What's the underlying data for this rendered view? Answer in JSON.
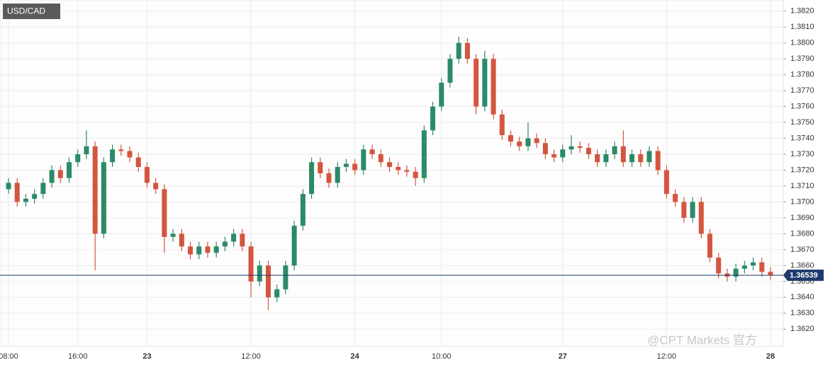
{
  "chart_data": {
    "type": "candlestick",
    "title": "USD/CAD",
    "watermark": "@CPT Markets 官方",
    "categories": [
      "08:00",
      null,
      null,
      null,
      null,
      null,
      null,
      null,
      "16:00",
      null,
      null,
      null,
      null,
      null,
      null,
      null,
      "23",
      null,
      null,
      null,
      null,
      null,
      null,
      null,
      null,
      null,
      null,
      null,
      "12:00",
      null,
      null,
      null,
      null,
      null,
      null,
      null,
      null,
      null,
      null,
      null,
      "24",
      null,
      null,
      null,
      null,
      null,
      null,
      null,
      null,
      null,
      "10:00",
      null,
      null,
      null,
      null,
      null,
      null,
      null,
      null,
      null,
      null,
      null,
      null,
      null,
      "27",
      null,
      null,
      null,
      null,
      null,
      null,
      null,
      null,
      null,
      null,
      null,
      "12:00",
      null,
      null,
      null,
      null,
      null,
      null,
      null,
      null,
      null,
      null,
      null,
      "28"
    ],
    "open": [
      1.3708,
      1.3712,
      1.37,
      1.3702,
      1.3705,
      1.3712,
      1.372,
      1.3715,
      1.3725,
      1.373,
      1.3735,
      1.368,
      1.3725,
      1.3733,
      1.3732,
      1.3728,
      1.3722,
      1.3712,
      1.3708,
      1.3678,
      1.368,
      1.3672,
      1.3667,
      1.3672,
      1.3668,
      1.3672,
      1.3675,
      1.368,
      1.3672,
      1.365,
      1.366,
      1.364,
      1.3645,
      1.366,
      1.3685,
      1.3705,
      1.3725,
      1.3718,
      1.3712,
      1.3722,
      1.3724,
      1.372,
      1.3733,
      1.373,
      1.3725,
      1.3722,
      1.372,
      1.3719,
      1.3715,
      1.3745,
      1.376,
      1.3775,
      1.379,
      1.38,
      1.379,
      1.376,
      1.379,
      1.3755,
      1.3742,
      1.3738,
      1.3735,
      1.374,
      1.3737,
      1.373,
      1.3728,
      1.3733,
      1.3735,
      1.3734,
      1.373,
      1.3725,
      1.373,
      1.3735,
      1.3725,
      1.373,
      1.3725,
      1.3732,
      1.372,
      1.3705,
      1.37,
      1.369,
      1.37,
      1.368,
      1.3665,
      1.3655,
      1.3653,
      1.3658,
      1.366,
      1.3662,
      1.3656
    ],
    "high": [
      1.3715,
      1.3715,
      1.3705,
      1.3708,
      1.3715,
      1.3723,
      1.3723,
      1.3728,
      1.3733,
      1.3745,
      1.3738,
      1.3728,
      1.3736,
      1.3736,
      1.3735,
      1.3731,
      1.3725,
      1.3715,
      1.3711,
      1.3683,
      1.3683,
      1.3675,
      1.3675,
      1.3675,
      1.3675,
      1.3678,
      1.3683,
      1.3683,
      1.3675,
      1.3663,
      1.3663,
      1.3648,
      1.3663,
      1.3688,
      1.3708,
      1.3728,
      1.3728,
      1.3721,
      1.3725,
      1.3727,
      1.3727,
      1.3736,
      1.3736,
      1.3733,
      1.3728,
      1.3725,
      1.3723,
      1.3722,
      1.3748,
      1.3763,
      1.3778,
      1.3793,
      1.3804,
      1.3803,
      1.3793,
      1.3795,
      1.3793,
      1.3758,
      1.3745,
      1.3741,
      1.375,
      1.3743,
      1.374,
      1.3733,
      1.3736,
      1.3742,
      1.3738,
      1.3737,
      1.3733,
      1.3733,
      1.3738,
      1.3745,
      1.3733,
      1.3733,
      1.3735,
      1.3735,
      1.3723,
      1.3708,
      1.3703,
      1.3703,
      1.3703,
      1.3683,
      1.3668,
      1.3658,
      1.3661,
      1.3663,
      1.3665,
      1.3665,
      1.3659
    ],
    "low": [
      1.3705,
      1.3697,
      1.3697,
      1.3699,
      1.3702,
      1.3709,
      1.3712,
      1.3712,
      1.3722,
      1.3727,
      1.3657,
      1.3677,
      1.3722,
      1.3729,
      1.3725,
      1.3719,
      1.3709,
      1.3705,
      1.3668,
      1.3675,
      1.3669,
      1.3664,
      1.3664,
      1.3665,
      1.3665,
      1.3669,
      1.3672,
      1.3669,
      1.364,
      1.3647,
      1.3632,
      1.3637,
      1.3642,
      1.3657,
      1.3682,
      1.3702,
      1.3715,
      1.3709,
      1.3709,
      1.3719,
      1.3717,
      1.3717,
      1.3727,
      1.3722,
      1.3719,
      1.3717,
      1.3716,
      1.371,
      1.3712,
      1.3742,
      1.3757,
      1.3772,
      1.3787,
      1.3787,
      1.3755,
      1.3757,
      1.3752,
      1.3739,
      1.3735,
      1.3732,
      1.3732,
      1.3734,
      1.3727,
      1.3725,
      1.3725,
      1.373,
      1.3731,
      1.3727,
      1.3722,
      1.3722,
      1.3727,
      1.3722,
      1.3722,
      1.3722,
      1.3722,
      1.3717,
      1.3702,
      1.3697,
      1.3687,
      1.3687,
      1.3677,
      1.3662,
      1.3652,
      1.365,
      1.365,
      1.3655,
      1.3657,
      1.3653,
      1.3651
    ],
    "close": [
      1.3712,
      1.37,
      1.3702,
      1.3705,
      1.3712,
      1.372,
      1.3715,
      1.3725,
      1.373,
      1.3735,
      1.368,
      1.3725,
      1.3733,
      1.3732,
      1.3728,
      1.3722,
      1.3712,
      1.3708,
      1.3678,
      1.368,
      1.3672,
      1.3667,
      1.3672,
      1.3668,
      1.3672,
      1.3675,
      1.368,
      1.3672,
      1.365,
      1.366,
      1.364,
      1.3645,
      1.366,
      1.3685,
      1.3705,
      1.3725,
      1.3718,
      1.3712,
      1.3722,
      1.3724,
      1.372,
      1.3733,
      1.373,
      1.3725,
      1.3722,
      1.372,
      1.3719,
      1.3715,
      1.3745,
      1.376,
      1.3775,
      1.379,
      1.38,
      1.379,
      1.376,
      1.379,
      1.3755,
      1.3742,
      1.3738,
      1.3735,
      1.374,
      1.3737,
      1.373,
      1.3728,
      1.3733,
      1.3735,
      1.3734,
      1.373,
      1.3725,
      1.373,
      1.3735,
      1.3725,
      1.373,
      1.3725,
      1.3732,
      1.372,
      1.3705,
      1.37,
      1.369,
      1.37,
      1.368,
      1.3665,
      1.3655,
      1.3653,
      1.3658,
      1.366,
      1.3662,
      1.3656,
      1.3654
    ],
    "up_color": "#2b8a67",
    "down_color": "#d4553f",
    "last_price": 1.36539,
    "last_price_color": "#1f3b6d",
    "ylim": [
      1.3609,
      1.3827
    ],
    "yticks": [
      {
        "value": 1.362,
        "label": "1.3620"
      },
      {
        "value": 1.363,
        "label": "1.3630"
      },
      {
        "value": 1.364,
        "label": "1.3640"
      },
      {
        "value": 1.365,
        "label": "1.3650"
      },
      {
        "value": 1.366,
        "label": "1.3660"
      },
      {
        "value": 1.367,
        "label": "1.3670"
      },
      {
        "value": 1.368,
        "label": "1.3680"
      },
      {
        "value": 1.369,
        "label": "1.3690"
      },
      {
        "value": 1.37,
        "label": "1.3700"
      },
      {
        "value": 1.371,
        "label": "1.3710"
      },
      {
        "value": 1.372,
        "label": "1.3720"
      },
      {
        "value": 1.373,
        "label": "1.3730"
      },
      {
        "value": 1.374,
        "label": "1.3740"
      },
      {
        "value": 1.375,
        "label": "1.3750"
      },
      {
        "value": 1.376,
        "label": "1.3760"
      },
      {
        "value": 1.377,
        "label": "1.3770"
      },
      {
        "value": 1.378,
        "label": "1.3780"
      },
      {
        "value": 1.379,
        "label": "1.3790"
      },
      {
        "value": 1.38,
        "label": "1.3800"
      },
      {
        "value": 1.381,
        "label": "1.3810"
      },
      {
        "value": 1.382,
        "label": "1.3820"
      }
    ],
    "grid": true
  }
}
